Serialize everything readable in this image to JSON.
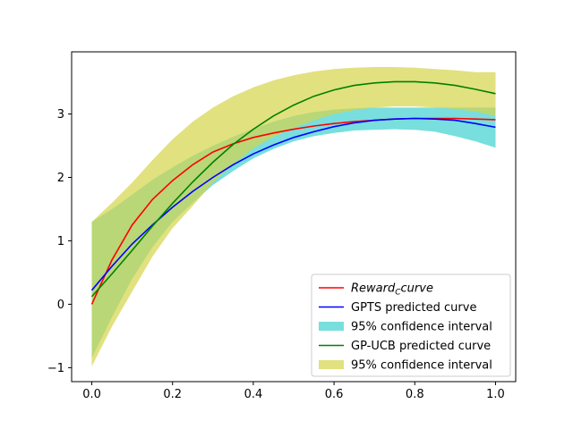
{
  "chart_data": {
    "type": "line",
    "title": "",
    "xlabel": "",
    "ylabel": "",
    "xlim": [
      -0.05,
      1.05
    ],
    "ylim": [
      -1.22,
      3.98
    ],
    "x_ticks": [
      0.0,
      0.2,
      0.4,
      0.6,
      0.8,
      1.0
    ],
    "x_tick_labels": [
      "0.0",
      "0.2",
      "0.4",
      "0.6",
      "0.8",
      "1.0"
    ],
    "y_ticks": [
      -1,
      0,
      1,
      2,
      3
    ],
    "y_tick_labels": [
      "−1",
      "0",
      "1",
      "2",
      "3"
    ],
    "grid": false,
    "legend_position": "lower-right",
    "x": [
      0.0,
      0.05,
      0.1,
      0.15,
      0.2,
      0.25,
      0.3,
      0.35,
      0.4,
      0.45,
      0.5,
      0.55,
      0.6,
      0.65,
      0.7,
      0.75,
      0.8,
      0.85,
      0.9,
      0.95,
      1.0
    ],
    "series": [
      {
        "name": "Reward_{C}curve",
        "legend_base": "Reward",
        "legend_sub": "C",
        "legend_tail": "curve",
        "kind": "line",
        "color": "#ff0000",
        "values": [
          0.0,
          0.7,
          1.25,
          1.65,
          1.95,
          2.2,
          2.4,
          2.53,
          2.63,
          2.7,
          2.76,
          2.81,
          2.85,
          2.88,
          2.9,
          2.92,
          2.93,
          2.93,
          2.93,
          2.92,
          2.91
        ]
      },
      {
        "name": "GPTS predicted curve",
        "kind": "line",
        "color": "#0000ff",
        "values": [
          0.22,
          0.6,
          0.95,
          1.25,
          1.53,
          1.78,
          2.0,
          2.2,
          2.37,
          2.51,
          2.63,
          2.72,
          2.8,
          2.86,
          2.9,
          2.92,
          2.93,
          2.92,
          2.9,
          2.85,
          2.79
        ]
      },
      {
        "name": "95% confidence interval",
        "kind": "band",
        "color": "#40d0d0",
        "opacity": 0.7,
        "lower": [
          -0.85,
          -0.2,
          0.4,
          0.9,
          1.3,
          1.6,
          1.88,
          2.1,
          2.3,
          2.45,
          2.57,
          2.65,
          2.7,
          2.74,
          2.75,
          2.76,
          2.75,
          2.72,
          2.65,
          2.57,
          2.47
        ],
        "upper": [
          1.3,
          1.5,
          1.73,
          1.96,
          2.16,
          2.34,
          2.5,
          2.64,
          2.77,
          2.88,
          2.97,
          3.03,
          3.07,
          3.09,
          3.1,
          3.1,
          3.1,
          3.1,
          3.1,
          3.1,
          3.1
        ]
      },
      {
        "name": "GP-UCB predicted curve",
        "kind": "line",
        "color": "#008000",
        "values": [
          0.12,
          0.48,
          0.85,
          1.23,
          1.59,
          1.93,
          2.24,
          2.52,
          2.76,
          2.97,
          3.14,
          3.28,
          3.38,
          3.45,
          3.49,
          3.51,
          3.51,
          3.49,
          3.45,
          3.39,
          3.32
        ]
      },
      {
        "name": "95% confidence interval",
        "kind": "band",
        "color": "#d4d44a",
        "opacity": 0.7,
        "lower": [
          -0.98,
          -0.35,
          0.2,
          0.75,
          1.2,
          1.55,
          1.92,
          2.2,
          2.46,
          2.64,
          2.78,
          2.9,
          3.0,
          3.06,
          3.1,
          3.12,
          3.12,
          3.1,
          3.08,
          3.04,
          2.97
        ],
        "upper": [
          1.3,
          1.6,
          1.92,
          2.27,
          2.6,
          2.88,
          3.1,
          3.28,
          3.42,
          3.53,
          3.61,
          3.67,
          3.71,
          3.73,
          3.74,
          3.74,
          3.73,
          3.71,
          3.69,
          3.66,
          3.66
        ]
      }
    ]
  }
}
